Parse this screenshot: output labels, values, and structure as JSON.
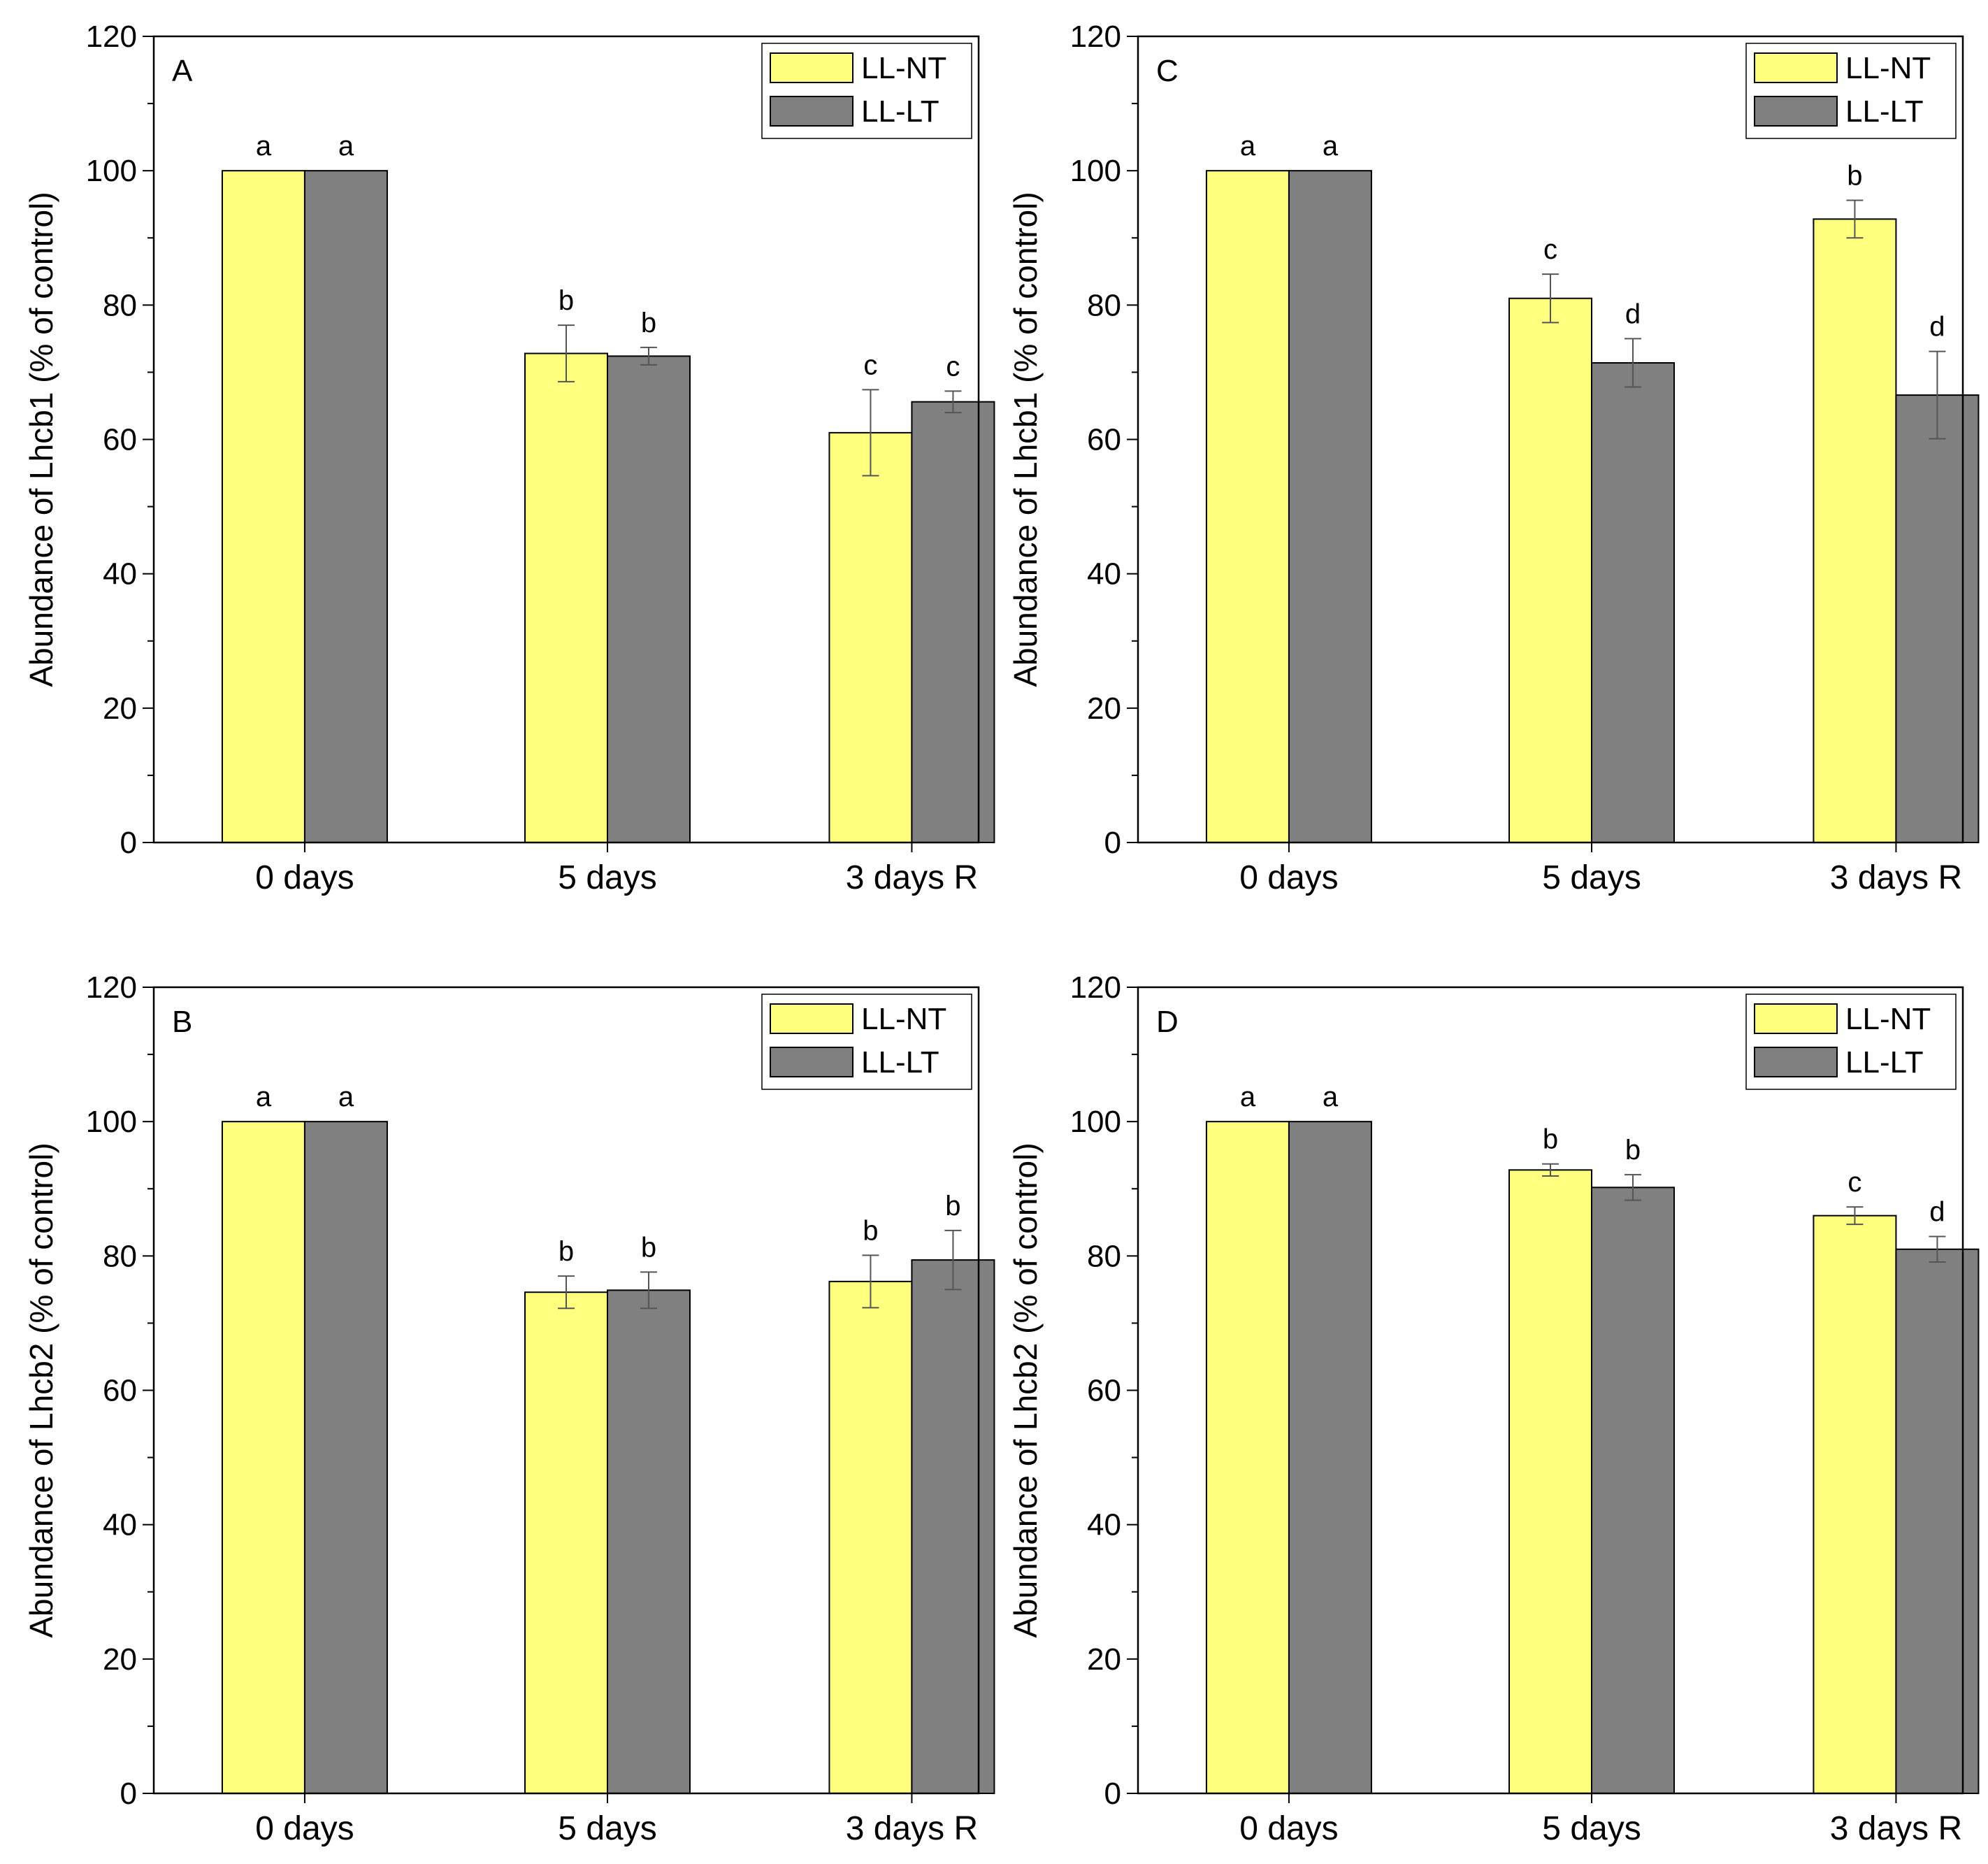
{
  "figure": {
    "background": "#ffffff",
    "series_colors": {
      "LL-NT": "#ffff80",
      "LL-LT": "#808080"
    }
  },
  "chart_data": [
    {
      "panel": "A",
      "type": "bar",
      "categories": [
        "0 days",
        "5 days",
        "3 days R"
      ],
      "ylabel": "Abundance of Lhcb1 (% of control)",
      "xlabel": "",
      "ylim": [
        0,
        120
      ],
      "yticks": [
        0,
        20,
        40,
        60,
        80,
        100,
        120
      ],
      "legend": {
        "position": "top-right",
        "entries": [
          "LL-NT",
          "LL-LT"
        ]
      },
      "series": [
        {
          "name": "LL-NT",
          "color": "#ffff80",
          "values": [
            100,
            72.8,
            61.0
          ],
          "errors": [
            0,
            4.2,
            6.4
          ],
          "labels": [
            "a",
            "b",
            "c"
          ]
        },
        {
          "name": "LL-LT",
          "color": "#808080",
          "values": [
            100,
            72.4,
            65.6
          ],
          "errors": [
            0,
            1.3,
            1.6
          ],
          "labels": [
            "a",
            "b",
            "c"
          ]
        }
      ]
    },
    {
      "panel": "C",
      "type": "bar",
      "categories": [
        "0 days",
        "5 days",
        "3 days R"
      ],
      "ylabel": "Abundance of Lhcb1 (% of control)",
      "xlabel": "",
      "ylim": [
        0,
        120
      ],
      "yticks": [
        0,
        20,
        40,
        60,
        80,
        100,
        120
      ],
      "legend": {
        "position": "top-right",
        "entries": [
          "LL-NT",
          "LL-LT"
        ]
      },
      "series": [
        {
          "name": "LL-NT",
          "color": "#ffff80",
          "values": [
            100,
            81.0,
            92.8
          ],
          "errors": [
            0,
            3.6,
            2.8
          ],
          "labels": [
            "a",
            "c",
            "b"
          ]
        },
        {
          "name": "LL-LT",
          "color": "#808080",
          "values": [
            100,
            71.4,
            66.6
          ],
          "errors": [
            0,
            3.6,
            6.5
          ],
          "labels": [
            "a",
            "d",
            "d"
          ]
        }
      ]
    },
    {
      "panel": "B",
      "type": "bar",
      "categories": [
        "0 days",
        "5 days",
        "3 days R"
      ],
      "ylabel": "Abundance of Lhcb2 (% of control)",
      "xlabel": "",
      "ylim": [
        0,
        120
      ],
      "yticks": [
        0,
        20,
        40,
        60,
        80,
        100,
        120
      ],
      "legend": {
        "position": "top-right",
        "entries": [
          "LL-NT",
          "LL-LT"
        ]
      },
      "series": [
        {
          "name": "LL-NT",
          "color": "#ffff80",
          "values": [
            100,
            74.6,
            76.2
          ],
          "errors": [
            0,
            2.4,
            3.9
          ],
          "labels": [
            "a",
            "b",
            "b"
          ]
        },
        {
          "name": "LL-LT",
          "color": "#808080",
          "values": [
            100,
            74.9,
            79.4
          ],
          "errors": [
            0,
            2.7,
            4.4
          ],
          "labels": [
            "a",
            "b",
            "b"
          ]
        }
      ]
    },
    {
      "panel": "D",
      "type": "bar",
      "categories": [
        "0 days",
        "5 days",
        "3 days R"
      ],
      "ylabel": "Abundance of Lhcb2 (% of control)",
      "xlabel": "",
      "ylim": [
        0,
        120
      ],
      "yticks": [
        0,
        20,
        40,
        60,
        80,
        100,
        120
      ],
      "legend": {
        "position": "top-right",
        "entries": [
          "LL-NT",
          "LL-LT"
        ]
      },
      "series": [
        {
          "name": "LL-NT",
          "color": "#ffff80",
          "values": [
            100,
            92.8,
            86.0
          ],
          "errors": [
            0,
            0.9,
            1.3
          ],
          "labels": [
            "a",
            "b",
            "c"
          ]
        },
        {
          "name": "LL-LT",
          "color": "#808080",
          "values": [
            100,
            90.2,
            81.0
          ],
          "errors": [
            0,
            1.9,
            1.9
          ],
          "labels": [
            "a",
            "b",
            "d"
          ]
        }
      ]
    }
  ]
}
